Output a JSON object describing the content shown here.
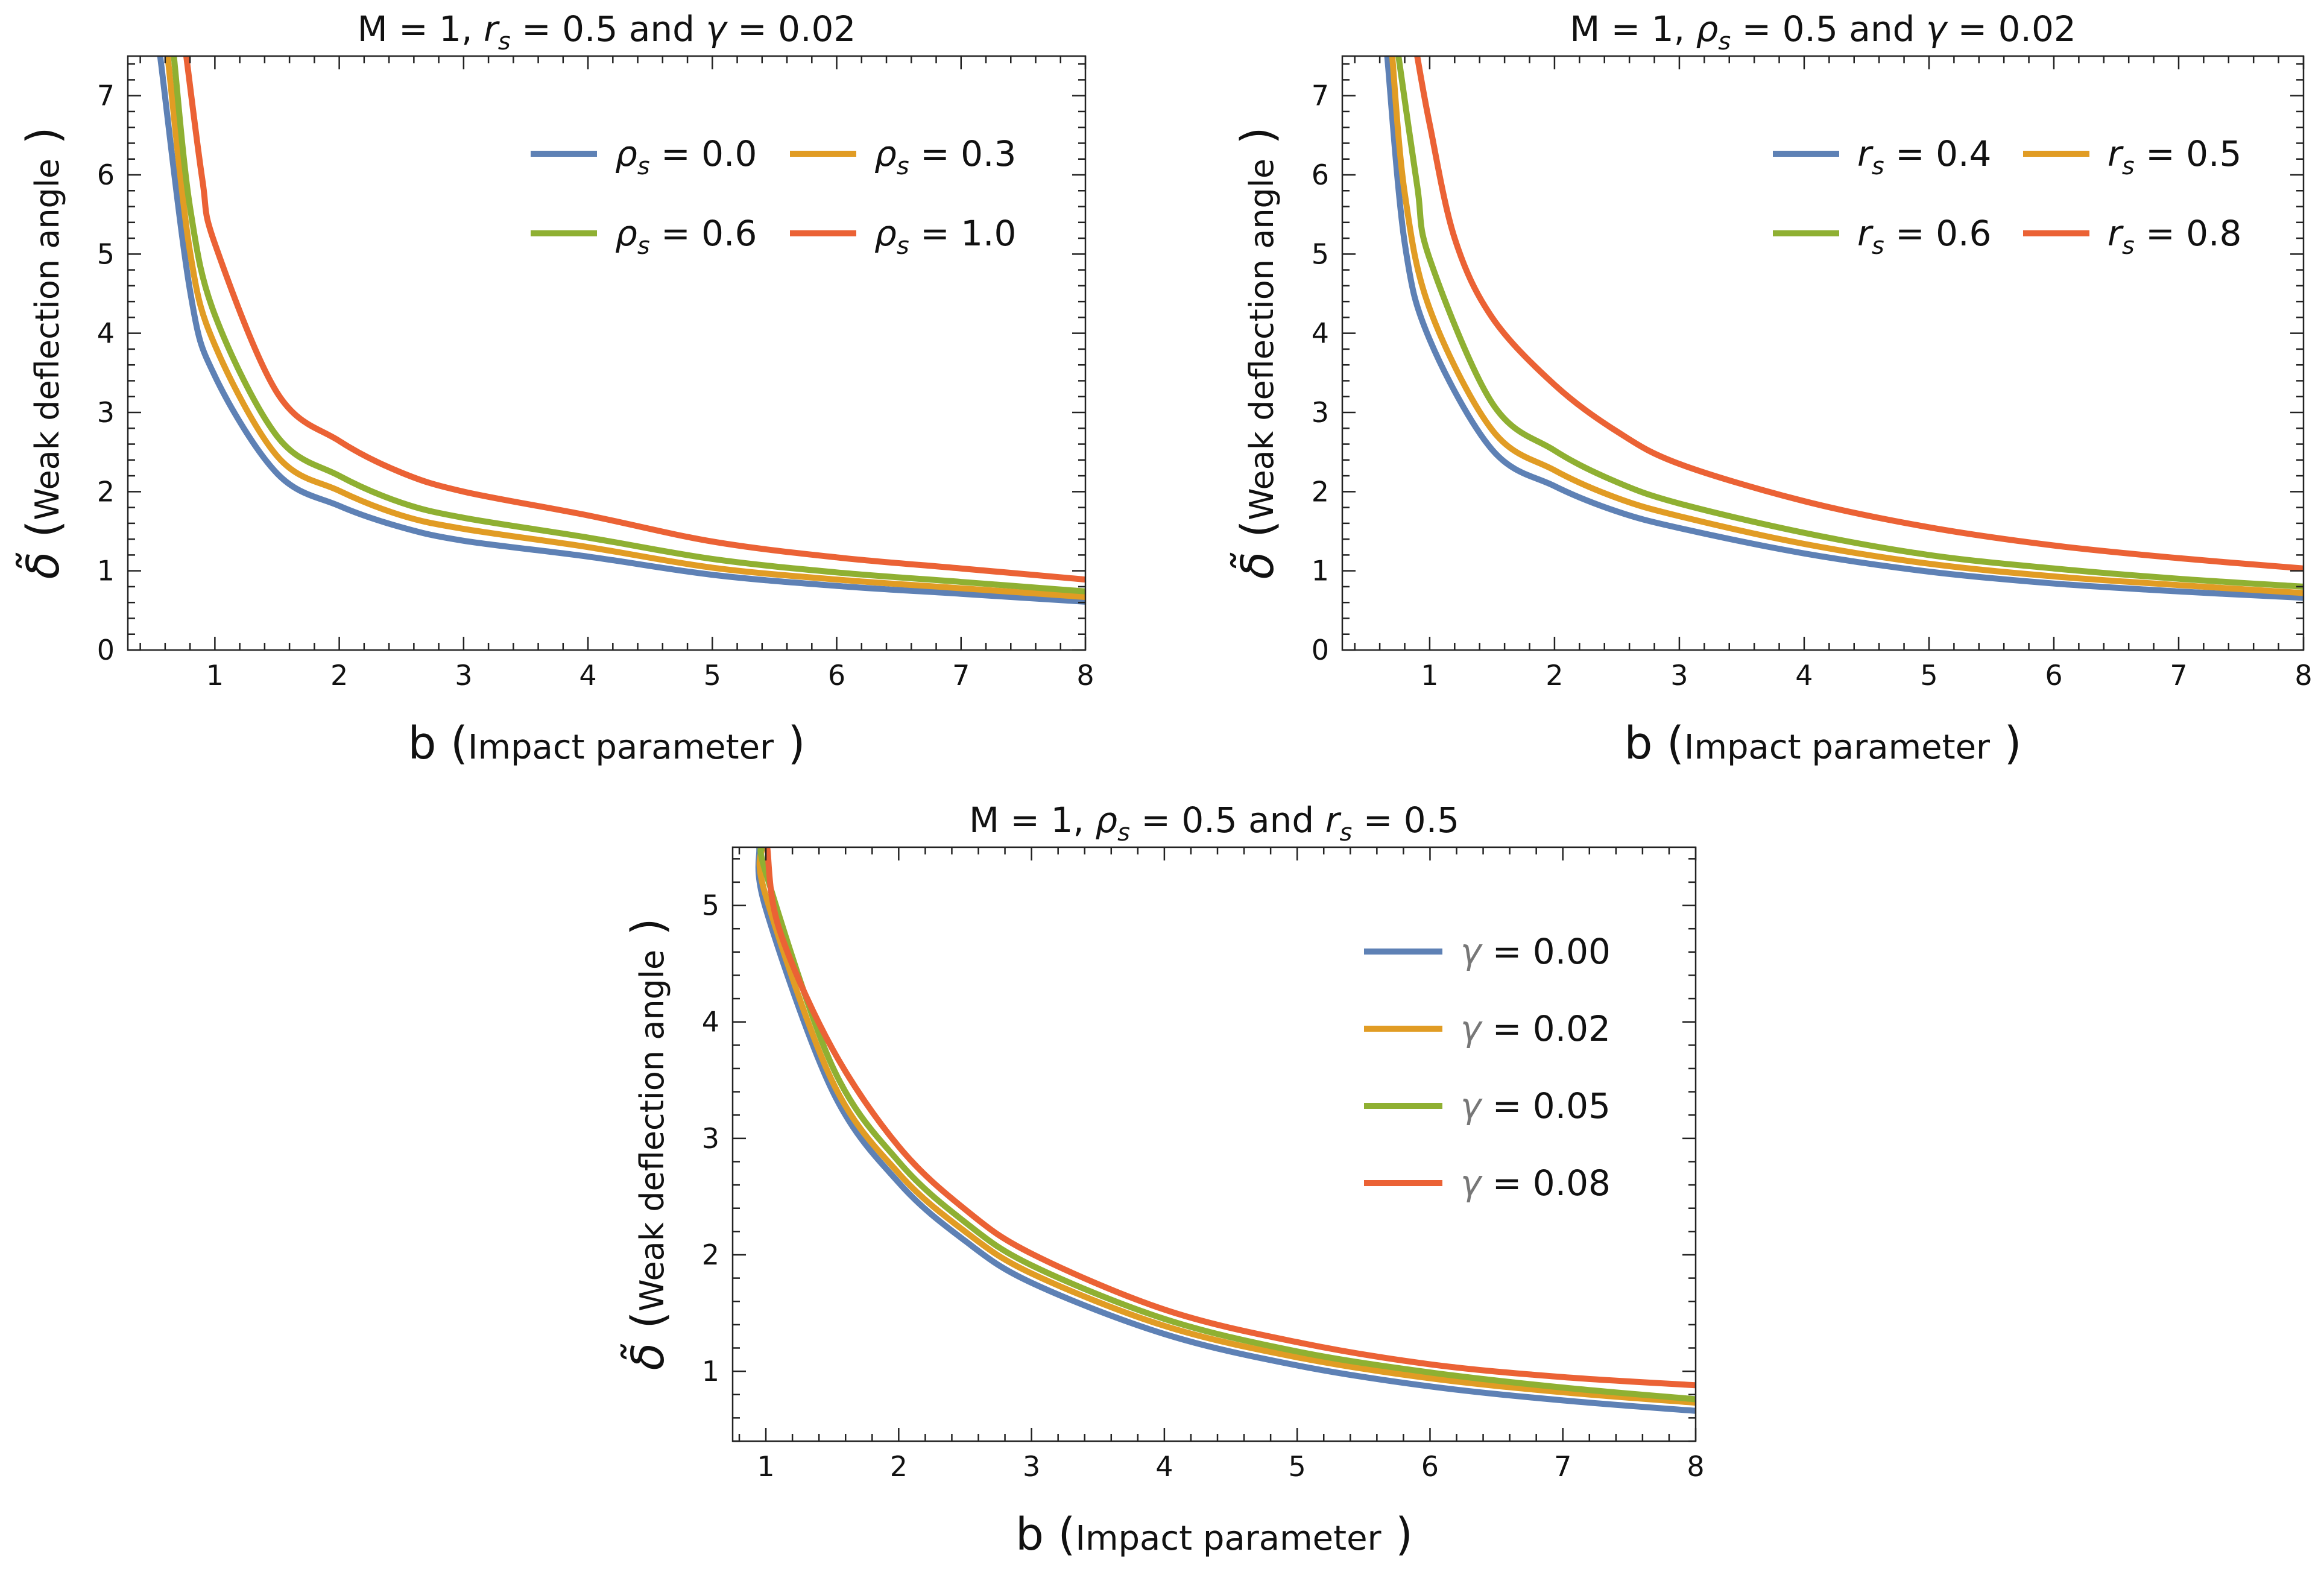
{
  "chart_data": [
    {
      "type": "line",
      "title": "M = 1, r_s = 0.5 and  γ = 0.02",
      "title_parts": {
        "pre": "M = 1, ",
        "sym": "r",
        "sub": "s",
        "post": " = 0.5 and  ",
        "sym2": "γ",
        "post2": " = 0.02"
      },
      "xlabel": {
        "main": "b",
        "paren": "Impact parameter"
      },
      "ylabel": {
        "sym": "δ̃",
        "paren": "Weak deflection angle"
      },
      "xlim": [
        0.3,
        8
      ],
      "ylim": [
        0,
        7.5
      ],
      "xticks": [
        1,
        2,
        3,
        4,
        5,
        6,
        7,
        8
      ],
      "yticks": [
        0,
        1,
        2,
        3,
        4,
        5,
        6,
        7
      ],
      "legend_position": "top-right",
      "legend_columns": 2,
      "series": [
        {
          "name": "ρ_s = 0.0",
          "sym": "ρ",
          "sub": "s",
          "value": "= 0.0",
          "color": "#5e81b5",
          "x": [
            0.56,
            0.8,
            1,
            1.5,
            2,
            2.5,
            3,
            4,
            5,
            6,
            7,
            8
          ],
          "y": [
            7.5,
            4.54,
            3.46,
            2.23,
            1.82,
            1.55,
            1.38,
            1.18,
            0.95,
            0.81,
            0.71,
            0.61
          ]
        },
        {
          "name": "ρ_s = 0.3",
          "sym": "ρ",
          "sub": "s",
          "value": "= 0.3",
          "color": "#e19c24",
          "x": [
            0.62,
            0.8,
            1,
            1.5,
            2,
            2.5,
            3,
            4,
            5,
            6,
            7,
            8
          ],
          "y": [
            7.5,
            5.03,
            3.85,
            2.45,
            2.01,
            1.7,
            1.53,
            1.3,
            1.04,
            0.89,
            0.78,
            0.67
          ]
        },
        {
          "name": "ρ_s = 0.6",
          "sym": "ρ",
          "sub": "s",
          "value": "= 0.6",
          "color": "#8fb032",
          "x": [
            0.67,
            0.8,
            1,
            1.5,
            2,
            2.5,
            3,
            4,
            5,
            6,
            7,
            8
          ],
          "y": [
            7.5,
            5.59,
            4.23,
            2.7,
            2.2,
            1.86,
            1.67,
            1.42,
            1.15,
            0.98,
            0.86,
            0.74
          ]
        },
        {
          "name": "ρ_s = 1.0",
          "sym": "ρ",
          "sub": "s",
          "value": "= 1.0",
          "color": "#eb6235",
          "x": [
            0.77,
            0.9,
            1,
            1.5,
            2,
            2.5,
            3,
            4,
            5,
            6,
            7,
            8
          ],
          "y": [
            7.5,
            5.93,
            5.13,
            3.25,
            2.64,
            2.24,
            2.0,
            1.7,
            1.37,
            1.17,
            1.03,
            0.89
          ]
        }
      ]
    },
    {
      "type": "line",
      "title": "M = 1, ρ_s = 0.5 and  γ = 0.02",
      "title_parts": {
        "pre": "M = 1, ",
        "sym": "ρ",
        "sub": "s",
        "post": " = 0.5 and  ",
        "sym2": "γ",
        "post2": " = 0.02"
      },
      "xlabel": {
        "main": "b",
        "paren": "Impact parameter"
      },
      "ylabel": {
        "sym": "δ̃",
        "paren": "Weak deflection angle"
      },
      "xlim": [
        0.3,
        8
      ],
      "ylim": [
        0,
        7.5
      ],
      "xticks": [
        1,
        2,
        3,
        4,
        5,
        6,
        7,
        8
      ],
      "yticks": [
        0,
        1,
        2,
        3,
        4,
        5,
        6,
        7
      ],
      "legend_position": "top-right",
      "legend_columns": 2,
      "series": [
        {
          "name": "r_s = 0.4",
          "sym": "r",
          "sub": "s",
          "value": "= 0.4",
          "color": "#5e81b5",
          "x": [
            0.66,
            0.8,
            1,
            1.5,
            2,
            2.5,
            3,
            4,
            5,
            6,
            7,
            8
          ],
          "y": [
            7.5,
            5.14,
            3.92,
            2.53,
            2.07,
            1.75,
            1.54,
            1.22,
            0.99,
            0.84,
            0.74,
            0.66
          ]
        },
        {
          "name": "r_s = 0.5",
          "sym": "r",
          "sub": "s",
          "value": "= 0.5",
          "color": "#e19c24",
          "x": [
            0.7,
            0.8,
            1,
            1.5,
            2,
            2.5,
            3,
            4,
            5,
            6,
            7,
            8
          ],
          "y": [
            7.5,
            5.77,
            4.31,
            2.78,
            2.27,
            1.92,
            1.69,
            1.34,
            1.09,
            0.93,
            0.82,
            0.72
          ]
        },
        {
          "name": "r_s = 0.6",
          "sym": "r",
          "sub": "s",
          "value": "= 0.6",
          "color": "#8fb032",
          "x": [
            0.75,
            0.9,
            1,
            1.5,
            2,
            2.5,
            3,
            4,
            5,
            6,
            7,
            8
          ],
          "y": [
            7.5,
            5.86,
            4.94,
            3.12,
            2.52,
            2.12,
            1.85,
            1.48,
            1.2,
            1.03,
            0.9,
            0.8
          ]
        },
        {
          "name": "r_s = 0.8",
          "sym": "r",
          "sub": "s",
          "value": "= 0.8",
          "color": "#eb6235",
          "x": [
            0.9,
            1,
            1.2,
            1.5,
            2,
            2.5,
            3,
            4,
            5,
            6,
            7,
            8
          ],
          "y": [
            7.5,
            6.64,
            5.2,
            4.2,
            3.35,
            2.76,
            2.35,
            1.88,
            1.55,
            1.32,
            1.16,
            1.03
          ]
        }
      ]
    },
    {
      "type": "line",
      "title": "M = 1, ρ_s = 0.5 and  r_s = 0.5",
      "title_parts": {
        "pre": "M = 1, ",
        "sym": "ρ",
        "sub": "s",
        "post": " = 0.5 and  ",
        "sym2": "r",
        "sub2": "s",
        "post2": " = 0.5"
      },
      "xlabel": {
        "main": "b",
        "paren": "Impact parameter"
      },
      "ylabel": {
        "sym": "δ̃",
        "paren": "Weak deflection angle"
      },
      "xlim": [
        0.75,
        8
      ],
      "ylim": [
        0.4,
        5.5
      ],
      "xticks": [
        1,
        2,
        3,
        4,
        5,
        6,
        7,
        8
      ],
      "yticks": [
        1,
        2,
        3,
        4,
        5
      ],
      "legend_position": "top-right",
      "legend_columns": 1,
      "series": [
        {
          "name": "γ = 0.00",
          "sym": "γ",
          "value": "= 0.00",
          "color": "#5e81b5",
          "x": [
            0.95,
            1,
            1.5,
            2,
            2.5,
            3,
            4,
            5,
            6,
            7,
            8
          ],
          "y": [
            5.5,
            4.97,
            3.41,
            2.62,
            2.12,
            1.76,
            1.32,
            1.05,
            0.87,
            0.75,
            0.66
          ]
        },
        {
          "name": "γ = 0.02",
          "sym": "γ",
          "value": "= 0.02",
          "color": "#e19c24",
          "x": [
            0.97,
            1,
            1.5,
            2,
            2.5,
            3,
            4,
            5,
            6,
            7,
            8
          ],
          "y": [
            5.5,
            5.08,
            3.49,
            2.7,
            2.2,
            1.84,
            1.39,
            1.12,
            0.94,
            0.82,
            0.73
          ]
        },
        {
          "name": "γ = 0.05",
          "sym": "γ",
          "value": "= 0.05",
          "color": "#8fb032",
          "x": [
            0.99,
            1,
            1.5,
            2,
            2.5,
            3,
            4,
            5,
            6,
            7,
            8
          ],
          "y": [
            5.5,
            5.28,
            3.62,
            2.8,
            2.28,
            1.91,
            1.45,
            1.17,
            0.99,
            0.86,
            0.76
          ]
        },
        {
          "name": "γ = 0.08",
          "sym": "γ",
          "value": "= 0.08",
          "color": "#eb6235",
          "x": [
            1.01,
            1.1,
            1.5,
            2,
            2.5,
            3,
            4,
            5,
            6,
            7,
            8
          ],
          "y": [
            5.5,
            4.8,
            3.77,
            2.93,
            2.39,
            2.01,
            1.53,
            1.25,
            1.06,
            0.95,
            0.88
          ]
        }
      ]
    }
  ]
}
